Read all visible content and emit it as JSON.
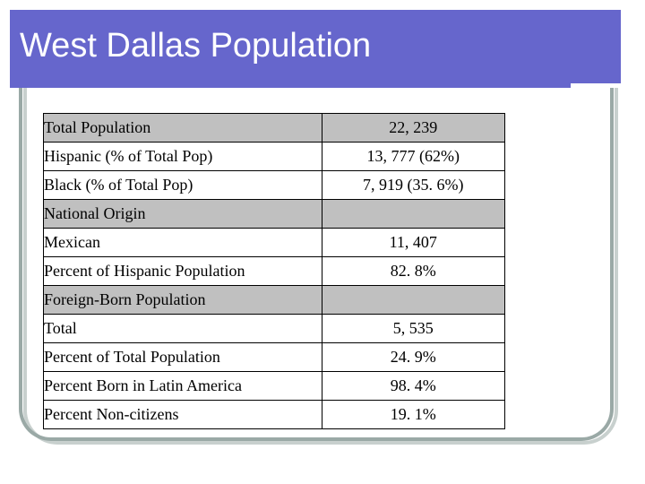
{
  "slide": {
    "title": "West Dallas Population"
  },
  "table": {
    "rows": [
      {
        "label": "Total Population",
        "value": "22, 239"
      },
      {
        "label": "Hispanic (% of Total Pop)",
        "value": "13, 777 (62%)"
      },
      {
        "label": "Black (% of Total Pop)",
        "value": "7, 919 (35. 6%)"
      },
      {
        "label": "National Origin",
        "value": ""
      },
      {
        "label": "Mexican",
        "value": "11, 407"
      },
      {
        "label": "Percent of Hispanic Population",
        "value": "82. 8%"
      },
      {
        "label": "Foreign-Born Population",
        "value": ""
      },
      {
        "label": "Total",
        "value": "5, 535"
      },
      {
        "label": "Percent of Total Population",
        "value": "24. 9%"
      },
      {
        "label": "Percent Born in Latin America",
        "value": "98. 4%"
      },
      {
        "label": "Percent Non-citizens",
        "value": "19. 1%"
      }
    ]
  },
  "colors": {
    "title_bar": "#6666cc",
    "header_fill": "#c0c0c0",
    "frame": "#9aa9a6"
  }
}
